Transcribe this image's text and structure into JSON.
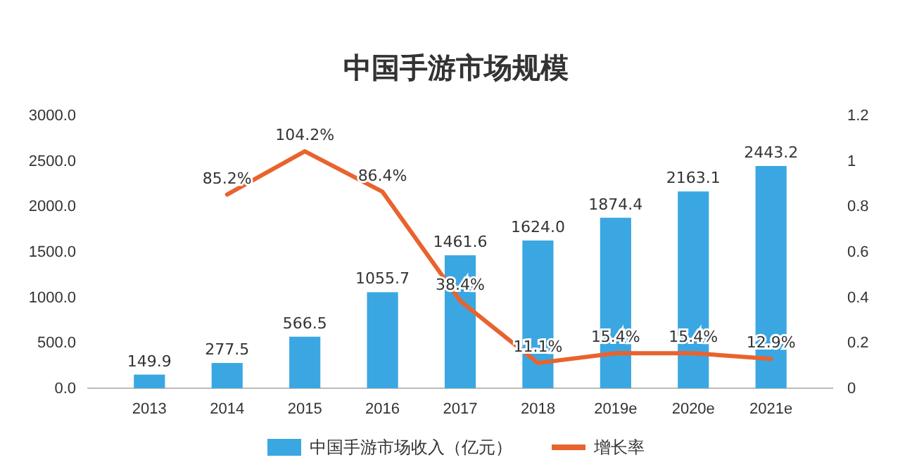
{
  "chart_data": {
    "type": "bar",
    "title": "中国手游市场规模",
    "categories": [
      "2013",
      "2014",
      "2015",
      "2016",
      "2017",
      "2018",
      "2019e",
      "2020e",
      "2021e"
    ],
    "series": [
      {
        "name": "中国手游市场收入（亿元）",
        "color": "#3ba7e2",
        "values": [
          149.9,
          277.5,
          566.5,
          1055.7,
          1461.6,
          1624.0,
          1874.4,
          2163.1,
          2443.2
        ],
        "value_labels": [
          "149.9",
          "277.5",
          "566.5",
          "1055.7",
          "1461.6",
          "1624.0",
          "1874.4",
          "2163.1",
          "2443.2"
        ]
      },
      {
        "name": "增长率",
        "type": "line",
        "axis": "y2",
        "color": "#e8632e",
        "values": [
          null,
          0.852,
          1.042,
          0.864,
          0.384,
          0.111,
          0.154,
          0.154,
          0.129
        ],
        "value_labels": [
          null,
          "85.2%",
          "104.2%",
          "86.4%",
          "38.4%",
          "11.1%",
          "15.4%",
          "15.4%",
          "12.9%"
        ]
      }
    ],
    "ylim": [
      0,
      3000
    ],
    "yticks": [
      {
        "value": 0,
        "label": "0.0"
      },
      {
        "value": 500,
        "label": "500.0"
      },
      {
        "value": 1000,
        "label": "1000.0"
      },
      {
        "value": 1500,
        "label": "1500.0"
      },
      {
        "value": 2000,
        "label": "2000.0"
      },
      {
        "value": 2500,
        "label": "2500.0"
      },
      {
        "value": 3000,
        "label": "3000.0"
      }
    ],
    "y2lim": [
      0,
      1.2
    ],
    "y2ticks": [
      0,
      0.2,
      0.4,
      0.6,
      0.8,
      1,
      1.2
    ],
    "legend": "bottom",
    "grid": false,
    "marker": "none",
    "line_style": "solid"
  }
}
